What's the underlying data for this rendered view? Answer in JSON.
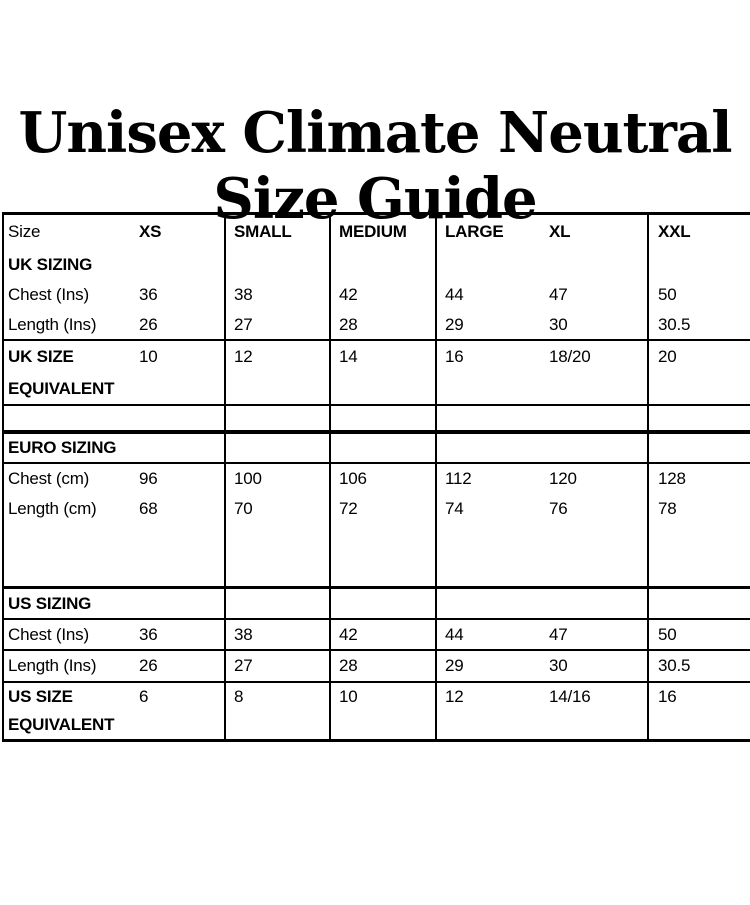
{
  "title": {
    "line1": "Unisex Climate Neutral",
    "line2": "Size Guide"
  },
  "table": {
    "header": {
      "size_label": "Size",
      "sizes": [
        "XS",
        "SMALL",
        "MEDIUM",
        "LARGE",
        "XL",
        "XXL"
      ]
    },
    "uk": {
      "section_label": "UK SIZING",
      "chest": {
        "label": "Chest (Ins)",
        "values": [
          "36",
          "38",
          "42",
          "44",
          "47",
          "50"
        ]
      },
      "length": {
        "label": "Length (Ins)",
        "values": [
          "26",
          "27",
          "28",
          "29",
          "30",
          "30.5"
        ]
      },
      "equivalent": {
        "label_line1": "UK SIZE",
        "label_line2": "EQUIVALENT",
        "values": [
          "10",
          "12",
          "14",
          "16",
          "18/20",
          "20"
        ]
      }
    },
    "euro": {
      "section_label": "EURO SIZING",
      "chest": {
        "label": "Chest (cm)",
        "values": [
          "96",
          "100",
          "106",
          "112",
          "120",
          "128"
        ]
      },
      "length": {
        "label": "Length (cm)",
        "values": [
          "68",
          "70",
          "72",
          "74",
          "76",
          "78"
        ]
      }
    },
    "us": {
      "section_label": "US SIZING",
      "chest": {
        "label": "Chest (Ins)",
        "values": [
          "36",
          "38",
          "42",
          "44",
          "47",
          "50"
        ]
      },
      "length": {
        "label": "Length (Ins)",
        "values": [
          "26",
          "27",
          "28",
          "29",
          "30",
          "30.5"
        ]
      },
      "equivalent": {
        "label_line1": "US SIZE",
        "label_line2": "EQUIVALENT",
        "values": [
          "6",
          "8",
          "10",
          "12",
          "14/16",
          "16"
        ]
      }
    }
  },
  "colors": {
    "background": "#ffffff",
    "text": "#000000",
    "border": "#000000"
  }
}
